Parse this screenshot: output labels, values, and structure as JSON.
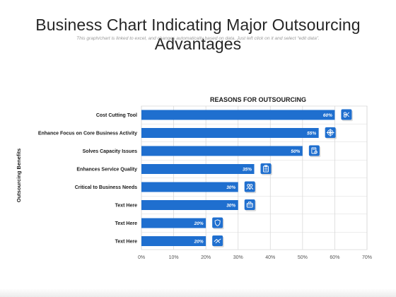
{
  "slide": {
    "title": "Business Chart Indicating Major Outsourcing Advantages",
    "subtitle": "This graph/chart is linked to excel, and changes automatically based on data. Just left click on it and select “edit data”."
  },
  "colors": {
    "bar": "#1f6fcf",
    "icon_box": "#1f6fcf",
    "grid": "#d9d9d9",
    "text": "#1a1a1a",
    "axis_text": "#555555"
  },
  "chart_data": {
    "type": "bar",
    "orientation": "horizontal",
    "title": "REASONS FOR OUTSOURCING",
    "xlabel": "",
    "ylabel": "Outsourcing Benefits",
    "xlim": [
      0,
      70
    ],
    "xticks": [
      "0%",
      "10%",
      "20%",
      "30%",
      "40%",
      "50%",
      "60%",
      "70%"
    ],
    "grid": true,
    "categories": [
      "Cost Cutting Tool",
      "Enhance Focus on Core Business Activity",
      "Solves Capacity Issues",
      "Enhances Service Quality",
      "Critical to Business Needs",
      "Text Here",
      "Text Here",
      "Text Here"
    ],
    "values": [
      60,
      55,
      50,
      35,
      30,
      30,
      20,
      20
    ],
    "value_labels": [
      "60%",
      "55%",
      "50%",
      "35%",
      "30%",
      "30%",
      "20%",
      "20%"
    ],
    "icons": [
      "dollar-scissors-icon",
      "target-icon",
      "document-gear-icon",
      "clipboard-icon",
      "people-icon",
      "briefcase-icon",
      "shield-icon",
      "handshake-icon"
    ]
  }
}
